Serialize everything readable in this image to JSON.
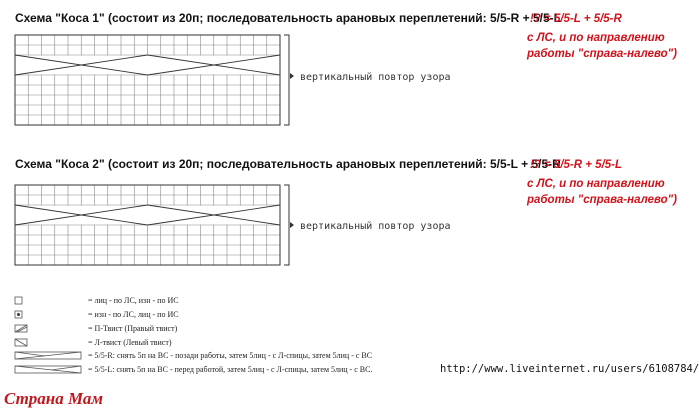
{
  "schemes": [
    {
      "title": "Схема \"Коса 1\" (состоит из 20п; последовательность арановых переплетений: 5/5-R + 5/5-L",
      "note": [
        "!? = 5/5-L + 5/5-R",
        "с ЛС, и по направлению",
        "работы \"справа-налево\")"
      ],
      "repeat_label": "вертикальный повтор узора"
    },
    {
      "title": "Схема \"Коса 2\" (состоит из 20п; последовательность арановых переплетений: 5/5-L + 5/5-R",
      "note": [
        "!? = 5/5-R + 5/5-L",
        "с ЛС, и по направлению",
        "работы \"справа-налево\")"
      ],
      "repeat_label": "вертикальный повтор узора"
    }
  ],
  "legend": [
    "= лиц - по ЛС, изн - по ИС",
    "= изн - по ЛС, лиц - по ИС",
    "= П-Твист (Правый твист)",
    "= Л-твист (Левый твист)",
    "= 5/5-R: снять 5п на ВС - позади работы, затем 5лиц - с Л-спицы, затем 5лиц - с ВС",
    "= 5/5-L: снять 5п на ВС - перед работой, затем 5лиц - с Л-спицы, затем 5лиц - с ВС."
  ],
  "url": "http://www.liveinternet.ru/users/6108784/",
  "watermark": "Страна Мам"
}
